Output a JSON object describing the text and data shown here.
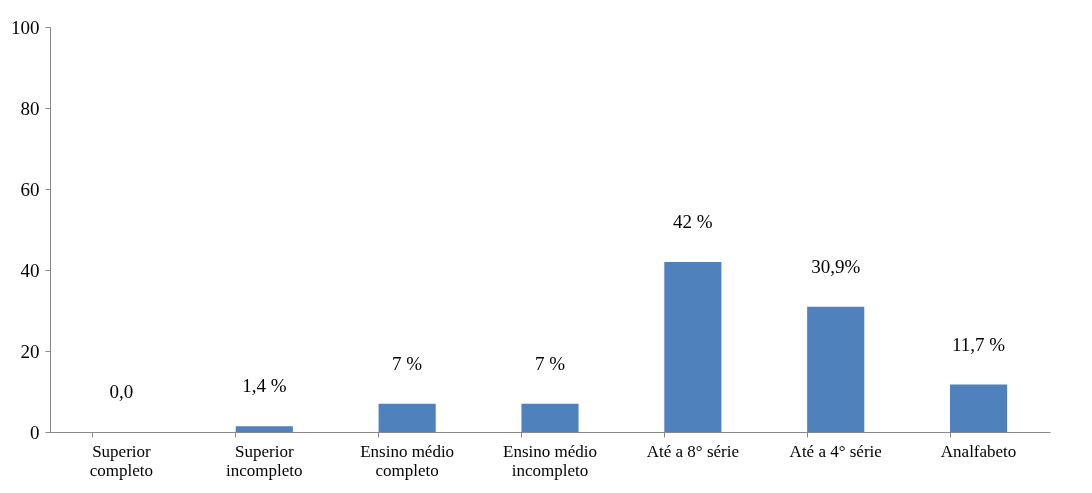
{
  "chart_data": {
    "type": "bar",
    "categories": [
      "Superior completo",
      "Superior incompleto",
      "Ensino médio completo",
      "Ensino médio incompleto",
      "Até a 8° série",
      "Até a 4° série",
      "Analfabeto"
    ],
    "values": [
      0,
      1.4,
      7,
      7,
      42,
      30.9,
      11.7
    ],
    "value_labels": [
      "0,0",
      "1,4 %",
      "7 %",
      "7 %",
      "42 %",
      "30,9%",
      "11,7 %"
    ],
    "color": "#4f81bd",
    "ylim": [
      0,
      100
    ],
    "yticks": [
      0,
      20,
      40,
      60,
      80,
      100
    ],
    "grid": false
  }
}
